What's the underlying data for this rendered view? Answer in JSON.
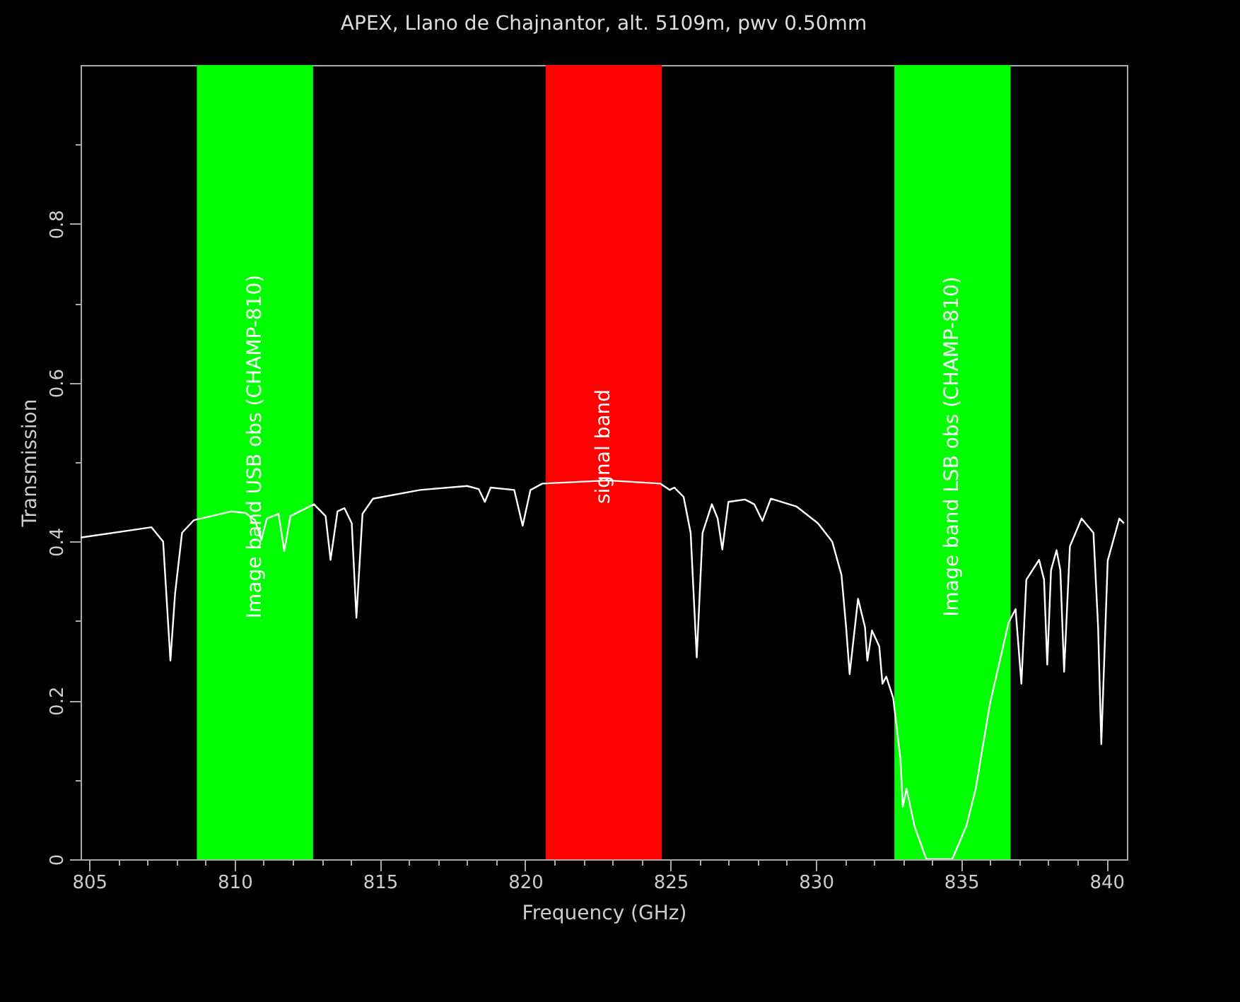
{
  "chart_data": {
    "type": "line",
    "title": "APEX, Llano de Chajnantor, alt. 5109m, pwv 0.50mm",
    "xlabel": "Frequency (GHz)",
    "ylabel": "Transmission",
    "xlim": [
      804.7,
      840.7
    ],
    "ylim": [
      0,
      1
    ],
    "xticks": [
      805,
      {
        "value": 806,
        "label": null
      },
      {
        "value": 807,
        "label": null
      },
      {
        "value": 808,
        "label": null
      },
      {
        "value": 809,
        "label": null
      },
      810,
      {
        "value": 811,
        "label": null
      },
      {
        "value": 812,
        "label": null
      },
      {
        "value": 813,
        "label": null
      },
      {
        "value": 814,
        "label": null
      },
      815,
      {
        "value": 816,
        "label": null
      },
      {
        "value": 817,
        "label": null
      },
      {
        "value": 818,
        "label": null
      },
      {
        "value": 819,
        "label": null
      },
      820,
      {
        "value": 821,
        "label": null
      },
      {
        "value": 822,
        "label": null
      },
      {
        "value": 823,
        "label": null
      },
      {
        "value": 824,
        "label": null
      },
      825,
      {
        "value": 826,
        "label": null
      },
      {
        "value": 827,
        "label": null
      },
      {
        "value": 828,
        "label": null
      },
      {
        "value": 829,
        "label": null
      },
      830,
      {
        "value": 831,
        "label": null
      },
      {
        "value": 832,
        "label": null
      },
      {
        "value": 833,
        "label": null
      },
      {
        "value": 834,
        "label": null
      },
      835,
      {
        "value": 836,
        "label": null
      },
      {
        "value": 837,
        "label": null
      },
      {
        "value": 838,
        "label": null
      },
      {
        "value": 839,
        "label": null
      },
      840
    ],
    "yticks": [
      0,
      {
        "value": 0.1,
        "label": null
      },
      0.2,
      {
        "value": 0.3,
        "label": null
      },
      0.4,
      {
        "value": 0.5,
        "label": null
      },
      0.6,
      {
        "value": 0.7,
        "label": null
      },
      0.8,
      {
        "value": 0.9,
        "label": null
      }
    ],
    "bands": [
      {
        "axis": "x",
        "from": 808.7,
        "to": 812.7,
        "label": "Image band USB obs (CHAMP-810)",
        "color": "#00ff00"
      },
      {
        "axis": "x",
        "from": 820.7,
        "to": 824.7,
        "label": "signal band",
        "color": "#ff0000"
      },
      {
        "axis": "x",
        "from": 832.7,
        "to": 836.7,
        "label": "Image band LSB obs (CHAMP-810)",
        "color": "#00ff00"
      }
    ],
    "x": [
      804.7,
      807.14,
      807.54,
      807.79,
      807.95,
      808.19,
      808.6,
      809.9,
      810.38,
      810.7,
      810.92,
      811.11,
      811.51,
      811.71,
      811.92,
      812.73,
      813.13,
      813.3,
      813.54,
      813.78,
      814.03,
      814.19,
      814.4,
      814.76,
      816.38,
      818.0,
      818.4,
      818.61,
      818.81,
      819.62,
      819.91,
      820.18,
      820.59,
      822.86,
      824.64,
      824.97,
      825.13,
      825.45,
      825.69,
      825.9,
      826.1,
      826.42,
      826.62,
      826.78,
      826.99,
      827.56,
      827.88,
      828.16,
      828.45,
      829.34,
      830.07,
      830.56,
      830.88,
      831.04,
      831.16,
      831.45,
      831.69,
      831.77,
      831.93,
      832.18,
      832.29,
      832.42,
      832.66,
      832.91,
      832.99,
      833.12,
      833.39,
      833.8,
      834.69,
      835.18,
      835.5,
      835.99,
      836.63,
      836.87,
      837.07,
      837.24,
      837.68,
      837.85,
      837.96,
      838.09,
      838.28,
      838.41,
      838.54,
      838.74,
      839.14,
      839.55,
      839.71,
      839.82,
      840.04,
      840.44,
      840.6
    ],
    "series": [
      {
        "color": "#ffffff",
        "values": [
          0.405,
          0.418,
          0.4,
          0.25,
          0.334,
          0.411,
          0.427,
          0.438,
          0.436,
          0.427,
          0.402,
          0.429,
          0.435,
          0.388,
          0.432,
          0.447,
          0.432,
          0.377,
          0.438,
          0.442,
          0.423,
          0.304,
          0.435,
          0.454,
          0.465,
          0.47,
          0.466,
          0.45,
          0.468,
          0.465,
          0.42,
          0.465,
          0.473,
          0.477,
          0.473,
          0.465,
          0.468,
          0.456,
          0.411,
          0.254,
          0.411,
          0.447,
          0.429,
          0.39,
          0.45,
          0.453,
          0.447,
          0.426,
          0.454,
          0.444,
          0.423,
          0.4,
          0.358,
          0.292,
          0.233,
          0.328,
          0.292,
          0.25,
          0.288,
          0.268,
          0.221,
          0.23,
          0.203,
          0.126,
          0.066,
          0.089,
          0.042,
          0,
          0,
          0.042,
          0.089,
          0.196,
          0.298,
          0.315,
          0.221,
          0.352,
          0.377,
          0.352,
          0.245,
          0.364,
          0.389,
          0.364,
          0.236,
          0.394,
          0.429,
          0.411,
          0.292,
          0.145,
          0.376,
          0.429,
          0.423
        ]
      }
    ]
  }
}
